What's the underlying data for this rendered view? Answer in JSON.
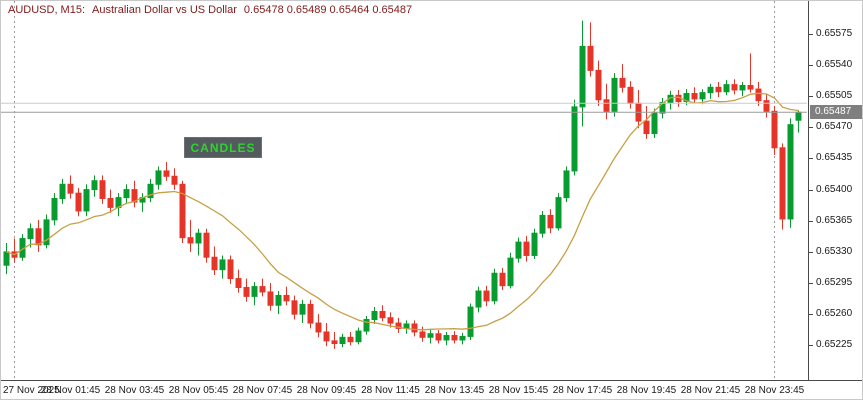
{
  "header": {
    "symbol": "AUDUSD, M15:",
    "description": "Australian Dollar vs US Dollar",
    "ohlc_text": "0.65478 0.65489 0.65464 0.65487",
    "color": "#801a1a"
  },
  "overlay_label": {
    "text": "CANDLES",
    "bg": "#545b5e",
    "color": "#2fd32f"
  },
  "chart_data": {
    "type": "candlestick",
    "title": "AUDUSD, M15: Australian Dollar vs US Dollar",
    "symbol": "AUDUSD",
    "timeframe": "M15",
    "current_bar": {
      "open": 0.65478,
      "high": 0.65489,
      "low": 0.65464,
      "close": 0.65487
    },
    "bid_price": 0.65487,
    "ask_price": 0.65497,
    "ylim": [
      0.65186,
      0.65612
    ],
    "y_ticks": [
      0.65575,
      0.6554,
      0.65505,
      0.6547,
      0.65435,
      0.654,
      0.65365,
      0.6533,
      0.65295,
      0.6526,
      0.65225
    ],
    "x_tick_labels": [
      "27 Nov 2025",
      "28 Nov 01:45",
      "28 Nov 03:45",
      "28 Nov 05:45",
      "28 Nov 07:45",
      "28 Nov 09:45",
      "28 Nov 11:45",
      "28 Nov 13:45",
      "28 Nov 15:45",
      "28 Nov 17:45",
      "28 Nov 19:45",
      "28 Nov 21:45",
      "28 Nov 23:45"
    ],
    "x_ticks_every_n_candles": 8,
    "day_separator_indices": [
      1,
      96
    ],
    "grid": false,
    "ma_period": 13,
    "colors": {
      "bull": "#089b2f",
      "bear": "#e53528",
      "ma": "#c7a045",
      "bid_line": "#9b9b9b",
      "ask_line": "#cccccc",
      "separator": "#9c9c9c",
      "axis_text": "#1a1a1a",
      "badge_bg": "#7f7f7f",
      "badge_text": "#ffffff"
    },
    "candles": [
      [
        0.65315,
        0.6534,
        0.65305,
        0.6533
      ],
      [
        0.6533,
        0.65345,
        0.65318,
        0.65324
      ],
      [
        0.65324,
        0.6535,
        0.6532,
        0.65345
      ],
      [
        0.65345,
        0.65362,
        0.65335,
        0.65356
      ],
      [
        0.65356,
        0.65366,
        0.6533,
        0.65338
      ],
      [
        0.65338,
        0.65372,
        0.65334,
        0.65366
      ],
      [
        0.65366,
        0.65396,
        0.6536,
        0.6539
      ],
      [
        0.6539,
        0.65412,
        0.65384,
        0.65406
      ],
      [
        0.65406,
        0.65416,
        0.6539,
        0.65396
      ],
      [
        0.65396,
        0.65402,
        0.6537,
        0.65376
      ],
      [
        0.65376,
        0.65406,
        0.6537,
        0.654
      ],
      [
        0.654,
        0.65416,
        0.65392,
        0.6541
      ],
      [
        0.6541,
        0.65416,
        0.65384,
        0.6539
      ],
      [
        0.6539,
        0.654,
        0.65374,
        0.6538
      ],
      [
        0.6538,
        0.65396,
        0.6537,
        0.65391
      ],
      [
        0.65391,
        0.65406,
        0.65385,
        0.654
      ],
      [
        0.654,
        0.6541,
        0.6538,
        0.65386
      ],
      [
        0.65386,
        0.65396,
        0.65375,
        0.65391
      ],
      [
        0.65391,
        0.65412,
        0.65386,
        0.65406
      ],
      [
        0.65406,
        0.65426,
        0.654,
        0.65421
      ],
      [
        0.65421,
        0.65431,
        0.6541,
        0.65415
      ],
      [
        0.65415,
        0.65424,
        0.654,
        0.65406
      ],
      [
        0.65406,
        0.6541,
        0.6534,
        0.65346
      ],
      [
        0.65346,
        0.65366,
        0.6533,
        0.6534
      ],
      [
        0.6534,
        0.65356,
        0.65326,
        0.65351
      ],
      [
        0.65351,
        0.65356,
        0.65318,
        0.65324
      ],
      [
        0.65324,
        0.65336,
        0.65304,
        0.6531
      ],
      [
        0.6531,
        0.65326,
        0.653,
        0.65321
      ],
      [
        0.65321,
        0.65326,
        0.65294,
        0.653
      ],
      [
        0.653,
        0.6531,
        0.65284,
        0.6529
      ],
      [
        0.6529,
        0.653,
        0.65274,
        0.6528
      ],
      [
        0.6528,
        0.65296,
        0.6527,
        0.65291
      ],
      [
        0.65291,
        0.653,
        0.6528,
        0.65285
      ],
      [
        0.65285,
        0.65295,
        0.65264,
        0.6527
      ],
      [
        0.6527,
        0.65286,
        0.6526,
        0.65281
      ],
      [
        0.65281,
        0.65291,
        0.6527,
        0.65275
      ],
      [
        0.65275,
        0.65281,
        0.65254,
        0.6526
      ],
      [
        0.6526,
        0.65276,
        0.6525,
        0.65271
      ],
      [
        0.65271,
        0.65276,
        0.65244,
        0.6525
      ],
      [
        0.6525,
        0.6526,
        0.65234,
        0.6524
      ],
      [
        0.6524,
        0.6525,
        0.65224,
        0.6523
      ],
      [
        0.6523,
        0.6524,
        0.65221,
        0.65227
      ],
      [
        0.65227,
        0.65238,
        0.65223,
        0.65234
      ],
      [
        0.65234,
        0.6524,
        0.65225,
        0.65229
      ],
      [
        0.65229,
        0.65245,
        0.65226,
        0.65241
      ],
      [
        0.65241,
        0.65258,
        0.65237,
        0.65254
      ],
      [
        0.65254,
        0.65268,
        0.65249,
        0.65263
      ],
      [
        0.65263,
        0.6527,
        0.65252,
        0.65256
      ],
      [
        0.65256,
        0.65262,
        0.65245,
        0.6525
      ],
      [
        0.6525,
        0.65256,
        0.65239,
        0.65244
      ],
      [
        0.65244,
        0.65253,
        0.65238,
        0.65249
      ],
      [
        0.65249,
        0.65253,
        0.65235,
        0.6524
      ],
      [
        0.6524,
        0.65246,
        0.65229,
        0.65234
      ],
      [
        0.65234,
        0.65243,
        0.65227,
        0.65238
      ],
      [
        0.65238,
        0.65242,
        0.65227,
        0.65231
      ],
      [
        0.65231,
        0.6524,
        0.65225,
        0.65236
      ],
      [
        0.65236,
        0.65241,
        0.65227,
        0.65231
      ],
      [
        0.65231,
        0.65239,
        0.65226,
        0.65235
      ],
      [
        0.65235,
        0.65272,
        0.65231,
        0.65268
      ],
      [
        0.65268,
        0.65291,
        0.65262,
        0.65286
      ],
      [
        0.65286,
        0.65292,
        0.65269,
        0.65275
      ],
      [
        0.65275,
        0.65311,
        0.65271,
        0.65306
      ],
      [
        0.65306,
        0.65312,
        0.65287,
        0.65292
      ],
      [
        0.65292,
        0.65329,
        0.65289,
        0.65323
      ],
      [
        0.65323,
        0.65346,
        0.65318,
        0.65341
      ],
      [
        0.65341,
        0.65348,
        0.65319,
        0.65326
      ],
      [
        0.65326,
        0.65356,
        0.65322,
        0.65351
      ],
      [
        0.65351,
        0.65376,
        0.65346,
        0.65371
      ],
      [
        0.65371,
        0.65378,
        0.65351,
        0.65357
      ],
      [
        0.65357,
        0.65396,
        0.65354,
        0.65391
      ],
      [
        0.65391,
        0.65426,
        0.65386,
        0.65421
      ],
      [
        0.65421,
        0.65501,
        0.65416,
        0.65493
      ],
      [
        0.65493,
        0.6559,
        0.65471,
        0.65561
      ],
      [
        0.65561,
        0.65588,
        0.65527,
        0.65534
      ],
      [
        0.65534,
        0.65545,
        0.65494,
        0.65501
      ],
      [
        0.65501,
        0.65519,
        0.65479,
        0.65488
      ],
      [
        0.65488,
        0.65531,
        0.65482,
        0.65525
      ],
      [
        0.65525,
        0.65541,
        0.65509,
        0.65515
      ],
      [
        0.65515,
        0.65522,
        0.65491,
        0.65497
      ],
      [
        0.65497,
        0.65512,
        0.65469,
        0.65477
      ],
      [
        0.65477,
        0.65494,
        0.65457,
        0.65463
      ],
      [
        0.65463,
        0.65491,
        0.65458,
        0.65486
      ],
      [
        0.65486,
        0.65503,
        0.6548,
        0.65498
      ],
      [
        0.65498,
        0.65511,
        0.6549,
        0.65506
      ],
      [
        0.65506,
        0.65512,
        0.65493,
        0.65499
      ],
      [
        0.65499,
        0.65513,
        0.65495,
        0.65508
      ],
      [
        0.65508,
        0.65515,
        0.65497,
        0.65502
      ],
      [
        0.65502,
        0.65513,
        0.65496,
        0.65509
      ],
      [
        0.65509,
        0.65519,
        0.65502,
        0.65515
      ],
      [
        0.65515,
        0.65521,
        0.65504,
        0.6551
      ],
      [
        0.6551,
        0.65523,
        0.65506,
        0.65518
      ],
      [
        0.65518,
        0.65524,
        0.65507,
        0.65512
      ],
      [
        0.65512,
        0.65521,
        0.65505,
        0.65517
      ],
      [
        0.65517,
        0.65553,
        0.65509,
        0.65513
      ],
      [
        0.65513,
        0.65521,
        0.65494,
        0.655
      ],
      [
        0.655,
        0.65507,
        0.65481,
        0.65488
      ],
      [
        0.65488,
        0.65494,
        0.65439,
        0.65447
      ],
      [
        0.65447,
        0.65452,
        0.65355,
        0.65367
      ],
      [
        0.65367,
        0.6548,
        0.65357,
        0.65473
      ],
      [
        0.65478,
        0.65489,
        0.65464,
        0.65487
      ]
    ]
  }
}
